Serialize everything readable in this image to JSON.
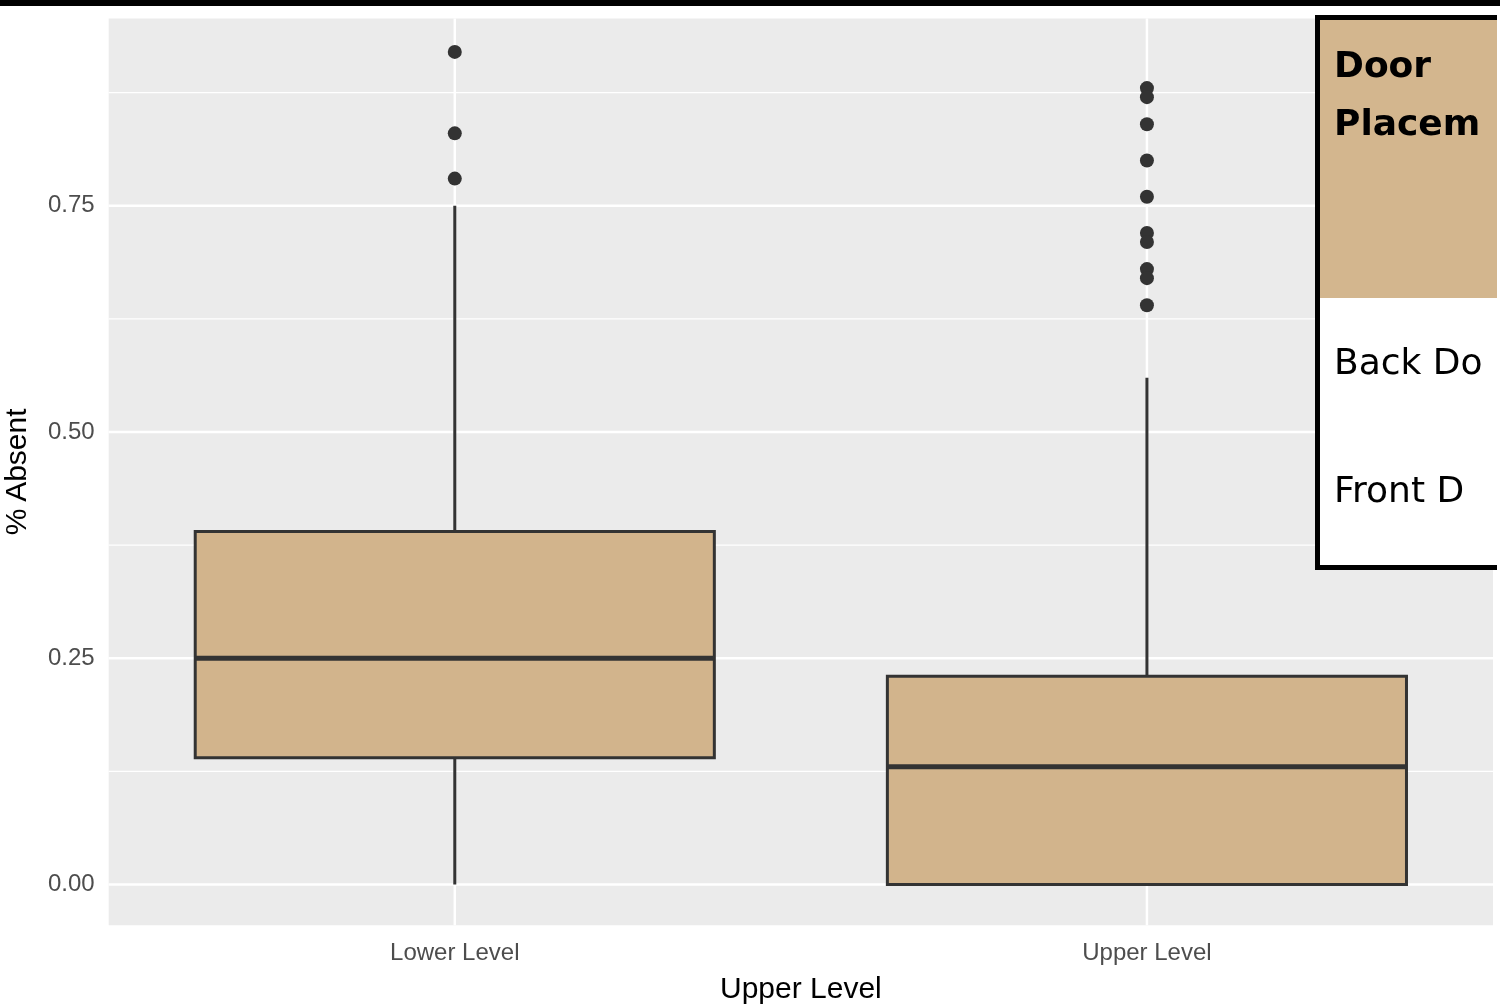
{
  "chart_data": {
    "type": "box",
    "categories": [
      "Lower Level",
      "Upper Level"
    ],
    "boxes": [
      {
        "low": 0,
        "q1": 0.14,
        "median": 0.25,
        "q3": 0.39,
        "high": 0.75,
        "outliers": [
          0.92,
          0.83,
          0.78
        ]
      },
      {
        "low": 0,
        "q1": 0,
        "median": 0.13,
        "q3": 0.23,
        "high": 0.56,
        "outliers": [
          0.88,
          0.87,
          0.84,
          0.8,
          0.76,
          0.72,
          0.71,
          0.68,
          0.67,
          0.64
        ]
      }
    ],
    "color": "#d2b48c",
    "xlabel": "Upper Level",
    "ylabel": "% Absent",
    "ylim": [
      -0.045,
      0.957
    ],
    "yticks": [
      {
        "value": 0,
        "label": "0.00"
      },
      {
        "value": 0.25,
        "label": "0.25"
      },
      {
        "value": 0.5,
        "label": "0.50"
      },
      {
        "value": 0.75,
        "label": "0.75"
      }
    ],
    "grid": true,
    "annotations": [
      "Door Placem",
      "Back Do",
      "Front D"
    ]
  }
}
